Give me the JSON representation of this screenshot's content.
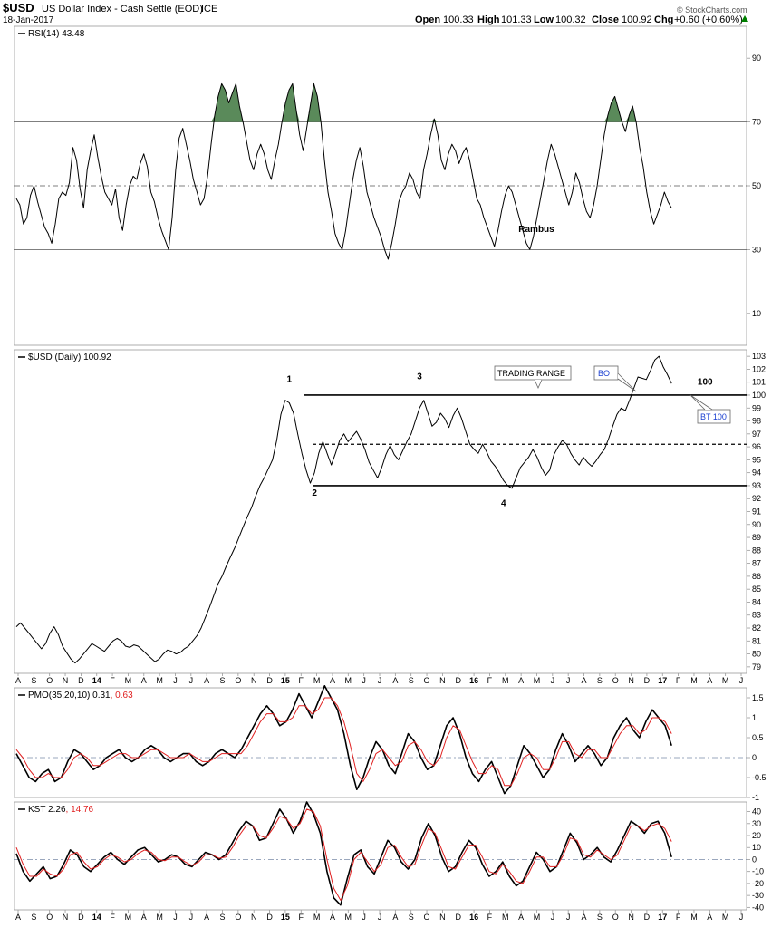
{
  "header": {
    "symbol": "$USD",
    "name": "US Dollar Index - Cash Settle (EOD)",
    "exchange": "ICE",
    "date": "18-Jan-2017",
    "open_label": "Open",
    "open": "100.33",
    "high_label": "High",
    "high": "101.33",
    "low_label": "Low",
    "low": "100.32",
    "close_label": "Close",
    "close": "100.92",
    "chg_label": "Chg",
    "chg": "+0.60 (+0.60%)",
    "credit": "© StockCharts.com",
    "chg_color": "#008000"
  },
  "colors": {
    "line": "#000000",
    "signal": "#e02020",
    "fill": "#5a8a5a",
    "grid": "#bbbbbb"
  },
  "icons": {
    "chg_arrow": "triangle-up-icon"
  },
  "chart_data": [
    {
      "panel": "rsi",
      "type": "line",
      "label": "RSI(14)",
      "value": "43.48",
      "ylim": [
        0,
        100
      ],
      "yticks": [
        10,
        30,
        50,
        70,
        90
      ],
      "levels": [
        30,
        50,
        70
      ],
      "annotation": "Rambus",
      "series": [
        {
          "values": [
            46,
            44,
            38,
            40,
            47,
            50,
            45,
            41,
            37,
            35,
            32,
            38,
            46,
            48,
            47,
            51,
            62,
            58,
            49,
            43,
            55,
            61,
            66,
            59,
            53,
            48,
            46,
            44,
            49,
            40,
            36,
            44,
            50,
            53,
            52,
            57,
            60,
            56,
            48,
            45,
            40,
            36,
            33,
            30,
            40,
            55,
            65,
            68,
            63,
            58,
            52,
            48,
            44,
            46,
            53,
            63,
            72,
            78,
            82,
            80,
            76,
            79,
            82,
            75,
            70,
            64,
            58,
            55,
            60,
            63,
            60,
            55,
            52,
            58,
            63,
            70,
            76,
            80,
            82,
            74,
            66,
            61,
            68,
            75,
            82,
            78,
            70,
            58,
            48,
            42,
            35,
            32,
            30,
            36,
            44,
            52,
            58,
            62,
            56,
            48,
            44,
            40,
            37,
            34,
            30,
            27,
            32,
            38,
            45,
            48,
            50,
            54,
            52,
            48,
            46,
            55,
            60,
            66,
            71,
            66,
            58,
            55,
            60,
            63,
            61,
            57,
            60,
            62,
            58,
            52,
            46,
            44,
            40,
            37,
            34,
            31,
            36,
            42,
            47,
            50,
            48,
            44,
            40,
            36,
            32,
            30,
            34,
            40,
            46,
            52,
            58,
            63,
            60,
            56,
            52,
            48,
            44,
            48,
            54,
            51,
            46,
            42,
            40,
            44,
            50,
            58,
            66,
            72,
            76,
            78,
            74,
            70,
            67,
            72,
            75,
            70,
            62,
            56,
            48,
            42,
            38,
            41,
            44,
            48,
            45,
            43
          ]
        }
      ]
    },
    {
      "panel": "price",
      "type": "line",
      "label": "$USD (Daily)",
      "value": "100.92",
      "ylim": [
        78.5,
        103.5
      ],
      "yticks": [
        79,
        80,
        81,
        82,
        83,
        84,
        85,
        86,
        87,
        88,
        89,
        90,
        91,
        92,
        93,
        94,
        95,
        96,
        97,
        98,
        99,
        100,
        101,
        102,
        103
      ],
      "series": [
        {
          "values": [
            82.1,
            82.4,
            82.0,
            81.6,
            81.2,
            80.8,
            80.4,
            80.8,
            81.6,
            82.1,
            81.5,
            80.6,
            80.1,
            79.6,
            79.3,
            79.6,
            80.0,
            80.4,
            80.8,
            80.6,
            80.4,
            80.2,
            80.6,
            81.0,
            81.2,
            81.0,
            80.6,
            80.5,
            80.7,
            80.6,
            80.3,
            80.0,
            79.7,
            79.4,
            79.6,
            80.0,
            80.3,
            80.2,
            80.0,
            80.1,
            80.4,
            80.6,
            81.0,
            81.4,
            82.0,
            82.8,
            83.6,
            84.5,
            85.4,
            86.0,
            86.8,
            87.5,
            88.2,
            89.0,
            89.8,
            90.6,
            91.3,
            92.2,
            93.0,
            93.6,
            94.3,
            95.0,
            96.5,
            98.5,
            99.6,
            99.4,
            98.6,
            97.0,
            95.5,
            94.2,
            93.2,
            94.0,
            95.5,
            96.4,
            95.5,
            94.6,
            95.5,
            96.5,
            97.0,
            96.4,
            96.8,
            97.2,
            96.6,
            95.8,
            94.8,
            94.2,
            93.6,
            94.4,
            95.4,
            96.1,
            95.4,
            95.0,
            95.7,
            96.4,
            97.0,
            98.0,
            99.0,
            99.6,
            98.6,
            97.6,
            97.9,
            98.6,
            98.2,
            97.5,
            98.4,
            99.0,
            98.2,
            97.2,
            96.2,
            95.8,
            95.5,
            96.2,
            95.6,
            94.9,
            94.5,
            94.0,
            93.4,
            93.0,
            92.8,
            93.6,
            94.4,
            94.8,
            95.2,
            95.8,
            95.2,
            94.4,
            93.8,
            94.2,
            95.4,
            96.0,
            96.5,
            96.2,
            95.5,
            95.0,
            94.6,
            95.2,
            94.8,
            94.5,
            94.9,
            95.4,
            95.8,
            96.6,
            97.6,
            98.5,
            99.0,
            98.8,
            99.6,
            100.5,
            101.4,
            101.3,
            101.2,
            101.9,
            102.7,
            103.0,
            102.2,
            101.6,
            100.9
          ]
        }
      ],
      "annotations": [
        {
          "text": "1",
          "x": 65,
          "y": 100.8
        },
        {
          "text": "2",
          "x": 71,
          "y": 92.0
        },
        {
          "text": "3",
          "x": 96,
          "y": 101.0
        },
        {
          "text": "4",
          "x": 116,
          "y": 91.2
        },
        {
          "text": "100",
          "x": 164,
          "y": 100.6
        }
      ],
      "callouts": {
        "trading_range": "TRADING RANGE",
        "bo": "BO",
        "bt": "BT 100"
      },
      "levels": [
        {
          "y": 100.0,
          "style": "solid"
        },
        {
          "y": 96.2,
          "style": "dashed"
        },
        {
          "y": 93.0,
          "style": "solid"
        }
      ],
      "xticks": [
        "A",
        "S",
        "O",
        "N",
        "D",
        "14",
        "F",
        "M",
        "A",
        "M",
        "J",
        "J",
        "A",
        "S",
        "O",
        "N",
        "D",
        "15",
        "F",
        "M",
        "A",
        "M",
        "J",
        "J",
        "A",
        "S",
        "O",
        "N",
        "D",
        "16",
        "F",
        "M",
        "A",
        "M",
        "J",
        "J",
        "A",
        "S",
        "O",
        "N",
        "D",
        "17",
        "F",
        "M",
        "A",
        "M",
        "J"
      ]
    },
    {
      "panel": "pmo",
      "type": "line",
      "label": "PMO(35,20,10)",
      "value": "0.31",
      "signal_value": "0.63",
      "ylim": [
        -1.0,
        1.75
      ],
      "yticks": [
        -1.0,
        -0.5,
        0.0,
        0.5,
        1.0,
        1.5
      ],
      "levels": [
        0
      ],
      "series": [
        {
          "values": [
            0.1,
            -0.2,
            -0.5,
            -0.6,
            -0.4,
            -0.3,
            -0.6,
            -0.5,
            -0.1,
            0.2,
            0.1,
            -0.1,
            -0.3,
            -0.2,
            0.0,
            0.1,
            0.2,
            0.0,
            -0.1,
            0.0,
            0.2,
            0.3,
            0.2,
            0.0,
            -0.1,
            0.0,
            0.1,
            0.1,
            -0.1,
            -0.2,
            -0.1,
            0.1,
            0.2,
            0.1,
            0.0,
            0.2,
            0.5,
            0.8,
            1.1,
            1.3,
            1.1,
            0.8,
            0.9,
            1.2,
            1.6,
            1.3,
            1.0,
            1.4,
            1.8,
            1.5,
            1.2,
            0.6,
            -0.2,
            -0.8,
            -0.5,
            0.0,
            0.4,
            0.2,
            -0.2,
            -0.4,
            0.1,
            0.6,
            0.4,
            0.0,
            -0.3,
            -0.2,
            0.3,
            0.8,
            1.0,
            0.6,
            0.0,
            -0.4,
            -0.6,
            -0.3,
            -0.1,
            -0.5,
            -0.9,
            -0.7,
            -0.2,
            0.3,
            0.1,
            -0.2,
            -0.5,
            -0.3,
            0.2,
            0.6,
            0.3,
            -0.1,
            0.1,
            0.3,
            0.1,
            -0.2,
            0.0,
            0.5,
            0.8,
            1.0,
            0.7,
            0.5,
            0.9,
            1.2,
            1.0,
            0.8,
            0.3
          ]
        },
        {
          "values": [
            0.2,
            0.0,
            -0.3,
            -0.5,
            -0.5,
            -0.4,
            -0.5,
            -0.5,
            -0.3,
            0.0,
            0.1,
            0.0,
            -0.2,
            -0.2,
            -0.1,
            0.0,
            0.1,
            0.1,
            0.0,
            0.0,
            0.1,
            0.2,
            0.2,
            0.1,
            0.0,
            0.0,
            0.0,
            0.1,
            0.0,
            -0.1,
            -0.1,
            0.0,
            0.1,
            0.1,
            0.1,
            0.1,
            0.3,
            0.6,
            0.9,
            1.1,
            1.1,
            0.9,
            0.9,
            1.0,
            1.3,
            1.3,
            1.1,
            1.2,
            1.5,
            1.5,
            1.3,
            0.9,
            0.3,
            -0.4,
            -0.6,
            -0.3,
            0.1,
            0.2,
            0.0,
            -0.2,
            -0.1,
            0.3,
            0.4,
            0.2,
            -0.1,
            -0.2,
            0.0,
            0.5,
            0.8,
            0.7,
            0.3,
            -0.1,
            -0.4,
            -0.4,
            -0.2,
            -0.3,
            -0.7,
            -0.7,
            -0.4,
            0.0,
            0.1,
            0.0,
            -0.3,
            -0.3,
            0.0,
            0.4,
            0.4,
            0.1,
            0.0,
            0.2,
            0.2,
            0.0,
            0.0,
            0.3,
            0.6,
            0.8,
            0.8,
            0.6,
            0.7,
            1.0,
            1.0,
            0.9,
            0.6
          ]
        }
      ]
    },
    {
      "panel": "kst",
      "type": "line",
      "label": "KST",
      "value": "2.26",
      "signal_value": "14.76",
      "ylim": [
        -42,
        48
      ],
      "yticks": [
        -40,
        -30,
        -20,
        -10,
        0,
        10,
        20,
        30,
        40
      ],
      "levels": [
        0
      ],
      "series": [
        {
          "values": [
            5,
            -10,
            -18,
            -12,
            -6,
            -16,
            -14,
            -4,
            8,
            4,
            -6,
            -10,
            -4,
            2,
            6,
            0,
            -4,
            2,
            8,
            10,
            4,
            -2,
            0,
            4,
            2,
            -4,
            -6,
            0,
            6,
            4,
            0,
            4,
            14,
            24,
            32,
            28,
            16,
            18,
            30,
            42,
            34,
            22,
            32,
            48,
            38,
            22,
            -10,
            -32,
            -38,
            -16,
            4,
            8,
            -6,
            -12,
            2,
            16,
            10,
            -2,
            -8,
            0,
            18,
            30,
            20,
            2,
            -10,
            -6,
            6,
            16,
            10,
            -4,
            -14,
            -10,
            -2,
            -14,
            -22,
            -18,
            -6,
            6,
            0,
            -10,
            -6,
            8,
            22,
            14,
            0,
            4,
            10,
            2,
            -2,
            8,
            20,
            32,
            28,
            22,
            30,
            32,
            22,
            2
          ]
        },
        {
          "values": [
            10,
            -4,
            -14,
            -14,
            -8,
            -12,
            -14,
            -8,
            4,
            6,
            -2,
            -8,
            -6,
            0,
            4,
            2,
            -2,
            0,
            5,
            8,
            6,
            0,
            -1,
            2,
            2,
            -2,
            -5,
            -2,
            4,
            4,
            1,
            2,
            10,
            20,
            28,
            28,
            20,
            18,
            26,
            36,
            34,
            26,
            30,
            42,
            40,
            28,
            0,
            -24,
            -34,
            -22,
            0,
            6,
            -2,
            -10,
            -4,
            10,
            12,
            2,
            -6,
            -4,
            12,
            26,
            22,
            8,
            -6,
            -8,
            2,
            12,
            12,
            2,
            -10,
            -12,
            -4,
            -10,
            -18,
            -20,
            -10,
            2,
            2,
            -6,
            -6,
            4,
            18,
            16,
            4,
            2,
            8,
            4,
            0,
            4,
            16,
            28,
            28,
            24,
            28,
            30,
            26,
            15
          ]
        }
      ],
      "xticks": [
        "A",
        "S",
        "O",
        "N",
        "D",
        "14",
        "F",
        "M",
        "A",
        "M",
        "J",
        "J",
        "A",
        "S",
        "O",
        "N",
        "D",
        "15",
        "F",
        "M",
        "A",
        "M",
        "J",
        "J",
        "A",
        "S",
        "O",
        "N",
        "D",
        "16",
        "F",
        "M",
        "A",
        "M",
        "J",
        "J",
        "A",
        "S",
        "O",
        "N",
        "D",
        "17",
        "F",
        "M",
        "A",
        "M",
        "J"
      ]
    }
  ]
}
